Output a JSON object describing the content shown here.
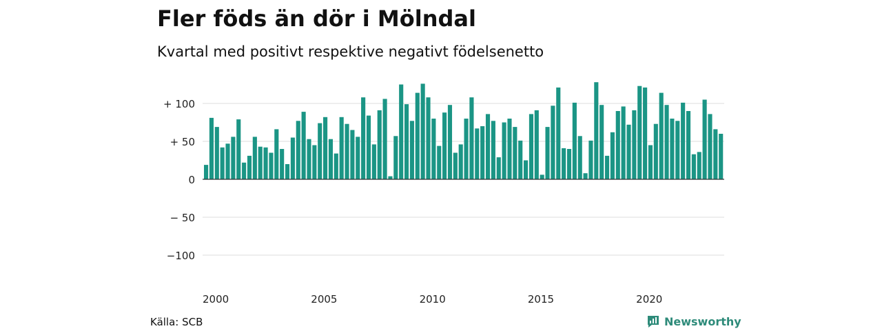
{
  "title": "Fler föds än dör i Mölndal",
  "subtitle": "Kvartal med positivt respektive negativt födelsenetto",
  "source": "Källa: SCB",
  "brand": "Newsworthy",
  "colors": {
    "bar": "#1b9585",
    "grid": "#dddddd",
    "axis": "#333333",
    "brand": "#2e8b7a"
  },
  "chart_data": {
    "type": "bar",
    "title": "Fler föds än dör i Mölndal",
    "subtitle": "Kvartal med positivt respektive negativt födelsenetto",
    "xlabel": "",
    "ylabel": "",
    "ylim": [
      -120,
      130
    ],
    "yticks": [
      {
        "value": 100,
        "label": "+ 100"
      },
      {
        "value": 50,
        "label": "+  50"
      },
      {
        "value": 0,
        "label": "0"
      },
      {
        "value": -50,
        "label": "− 50"
      },
      {
        "value": -100,
        "label": "−100"
      }
    ],
    "xticks": [
      {
        "value": 2000,
        "label": "2000"
      },
      {
        "value": 2005,
        "label": "2005"
      },
      {
        "value": 2010,
        "label": "2010"
      },
      {
        "value": 2015,
        "label": "2015"
      },
      {
        "value": 2020,
        "label": "2020"
      }
    ],
    "grid": true,
    "legend": "none",
    "start_year": 2000,
    "periods_per_year": 4,
    "values": [
      19,
      81,
      69,
      42,
      47,
      56,
      79,
      22,
      31,
      56,
      43,
      42,
      35,
      66,
      40,
      20,
      55,
      77,
      89,
      53,
      45,
      74,
      82,
      53,
      34,
      82,
      73,
      65,
      56,
      108,
      84,
      46,
      91,
      106,
      4,
      57,
      125,
      99,
      77,
      114,
      126,
      108,
      80,
      44,
      88,
      98,
      35,
      46,
      80,
      108,
      67,
      70,
      86,
      77,
      29,
      75,
      80,
      69,
      51,
      25,
      86,
      91,
      6,
      69,
      97,
      121,
      41,
      40,
      101,
      57,
      8,
      51,
      128,
      98,
      31,
      62,
      90,
      96,
      72,
      91,
      123,
      121,
      45,
      73,
      114,
      98,
      80,
      77,
      101,
      90,
      33,
      36,
      105,
      86,
      66,
      60
    ]
  }
}
